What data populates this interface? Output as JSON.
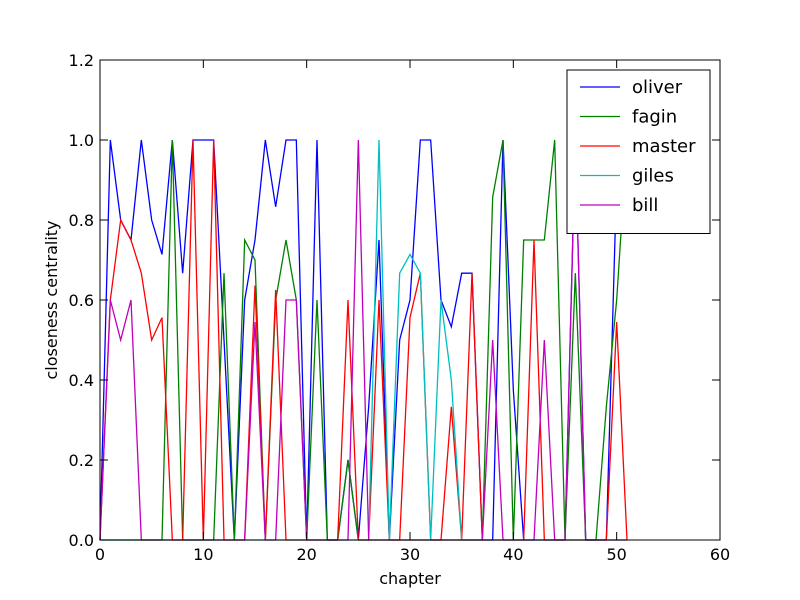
{
  "chart_data": {
    "type": "line",
    "xlabel": "chapter",
    "ylabel": "closeness centrality",
    "xlim": [
      0,
      60
    ],
    "ylim": [
      0,
      1.2
    ],
    "xticks": [
      0,
      10,
      20,
      30,
      40,
      50,
      60
    ],
    "yticks": [
      0.0,
      0.2,
      0.4,
      0.6,
      0.8,
      1.0,
      1.2
    ],
    "xtick_labels": [
      "0",
      "10",
      "20",
      "30",
      "40",
      "50",
      "60"
    ],
    "ytick_labels": [
      "0.0",
      "0.2",
      "0.4",
      "0.6",
      "0.8",
      "1.0",
      "1.2"
    ],
    "grid": false,
    "legend_position": "top-right",
    "x": [
      0,
      1,
      2,
      3,
      4,
      5,
      6,
      7,
      8,
      9,
      10,
      11,
      12,
      13,
      14,
      15,
      16,
      17,
      18,
      19,
      20,
      21,
      22,
      23,
      24,
      25,
      26,
      27,
      28,
      29,
      30,
      31,
      32,
      33,
      34,
      35,
      36,
      37,
      38,
      39,
      40,
      41,
      42,
      43,
      44,
      45,
      46,
      47,
      48,
      49,
      50,
      51
    ],
    "series": [
      {
        "name": "oliver",
        "color": "#0000ff",
        "values": [
          0,
          1.0,
          0.8,
          0.75,
          1.0,
          0.8,
          0.714,
          1.0,
          0.667,
          1.0,
          1.0,
          1.0,
          0.5,
          0,
          0.6,
          0.75,
          1.0,
          0.833,
          1.0,
          1.0,
          0,
          1.0,
          0,
          0,
          0.2,
          0,
          0.333,
          0.75,
          0,
          0.5,
          0.6,
          1.0,
          1.0,
          0.6,
          0.533,
          0.667,
          0.667,
          0,
          0,
          1.0,
          0.375,
          0,
          0,
          0,
          0,
          0,
          1.0,
          0,
          0,
          0,
          0.9,
          1.0
        ]
      },
      {
        "name": "fagin",
        "color": "#008000",
        "values": [
          0,
          0,
          0,
          0,
          0,
          0,
          0,
          1.0,
          0,
          0,
          0,
          0,
          0.667,
          0,
          0.75,
          0.7,
          0,
          0.6,
          0.75,
          0.6,
          0,
          0.6,
          0,
          0,
          0.2,
          0,
          0,
          0,
          0,
          0,
          0,
          0,
          0,
          0,
          0,
          0,
          0,
          0,
          0.857,
          1.0,
          0,
          0.75,
          0.75,
          0.75,
          1.0,
          0,
          0.667,
          0,
          0,
          0.333,
          0.6,
          1.0
        ]
      },
      {
        "name": "master",
        "color": "#ff0000",
        "values": [
          0,
          0.6,
          0.8,
          0.75,
          0.667,
          0.5,
          0.556,
          0,
          0,
          1.0,
          0,
          1.0,
          0,
          0,
          0,
          0.636,
          0,
          0.625,
          0,
          0,
          0,
          0,
          0,
          0,
          0.6,
          0,
          0,
          0.6,
          0,
          0,
          0.556,
          0.667,
          0,
          0,
          0.333,
          0,
          0.667,
          0,
          0,
          0,
          0,
          0,
          0.75,
          0,
          0,
          0,
          0,
          0,
          0,
          0,
          0.545,
          0
        ]
      },
      {
        "name": "giles",
        "color": "#00bfbf",
        "values": [
          0,
          0,
          0,
          0,
          0,
          0,
          0,
          0,
          0,
          0,
          0,
          0,
          0,
          0,
          0,
          0,
          0,
          0,
          0,
          0,
          0,
          0,
          0,
          0,
          0,
          0,
          0,
          1.0,
          0,
          0.667,
          0.714,
          0.667,
          0,
          0.6,
          0.4,
          0,
          0,
          0,
          0,
          0,
          0,
          0,
          0,
          0,
          0,
          0,
          0,
          0,
          0,
          0,
          0,
          0
        ]
      },
      {
        "name": "bill",
        "color": "#bf00bf",
        "values": [
          0,
          0.6,
          0.5,
          0.6,
          0,
          0,
          0,
          0,
          0,
          0,
          0,
          0,
          0,
          0,
          0,
          0.545,
          0,
          0,
          0.6,
          0.6,
          0,
          0,
          0,
          0,
          0,
          1.0,
          0,
          0,
          0,
          0,
          0,
          0,
          0,
          0,
          0,
          0,
          0,
          0,
          0.5,
          0,
          0,
          0,
          0,
          0.5,
          0,
          0,
          1.0,
          0,
          0,
          0,
          0,
          0
        ]
      }
    ]
  }
}
